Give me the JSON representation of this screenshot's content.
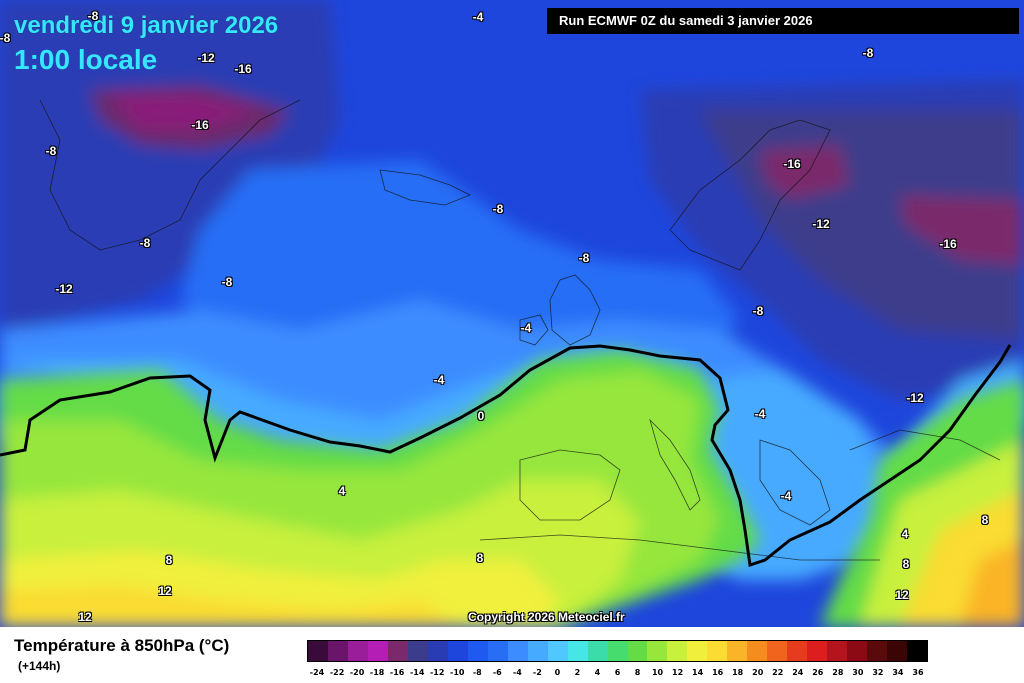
{
  "header": {
    "date": "vendredi 9 janvier 2026",
    "time": "1:00 locale",
    "run": "Run ECMWF 0Z du samedi 3 janvier 2026"
  },
  "copyright": "Copyright 2026 Meteociel.fr",
  "legend": {
    "title": "Température à 850hPa (°C)",
    "subtitle": "(+144h)",
    "ticks": [
      "-24",
      "-22",
      "-20",
      "-18",
      "-16",
      "-14",
      "-12",
      "-10",
      "-8",
      "-6",
      "-4",
      "-2",
      "0",
      "2",
      "4",
      "6",
      "8",
      "10",
      "12",
      "14",
      "16",
      "18",
      "20",
      "22",
      "24",
      "26",
      "28",
      "30",
      "32",
      "34",
      "36"
    ],
    "colors": [
      "#3a0a3a",
      "#6a146a",
      "#9a1e9a",
      "#b41eb4",
      "#7a2a6a",
      "#3c3c8c",
      "#2a3cb4",
      "#1e46dc",
      "#1e5af0",
      "#286ef5",
      "#3c8cff",
      "#46aaff",
      "#50c8ff",
      "#46e6e6",
      "#3cdcaa",
      "#46dc6e",
      "#64dc46",
      "#96e63c",
      "#c8f03c",
      "#f0f03c",
      "#fadc32",
      "#fab428",
      "#f58c1e",
      "#f0641e",
      "#e63c1e",
      "#dc1e1e",
      "#b4141e",
      "#8c0a14",
      "#5a0a0a",
      "#3c0505",
      "#000000"
    ]
  },
  "isotherm_labels": [
    {
      "text": "-8"
    },
    {
      "text": "-4"
    },
    {
      "text": "-8"
    },
    {
      "text": "-12"
    },
    {
      "text": "-16"
    },
    {
      "text": "-16"
    },
    {
      "text": "-8"
    },
    {
      "text": "-8"
    },
    {
      "text": "-8"
    },
    {
      "text": "-12"
    },
    {
      "text": "-8"
    },
    {
      "text": "-16"
    },
    {
      "text": "-12"
    },
    {
      "text": "-16"
    },
    {
      "text": "-8"
    },
    {
      "text": "-8"
    },
    {
      "text": "-4"
    },
    {
      "text": "-4"
    },
    {
      "text": "-4"
    },
    {
      "text": "-4"
    },
    {
      "text": "0"
    },
    {
      "text": "-12"
    },
    {
      "text": "4"
    },
    {
      "text": "8"
    },
    {
      "text": "8"
    },
    {
      "text": "12"
    },
    {
      "text": "12"
    },
    {
      "text": "4"
    },
    {
      "text": "8"
    },
    {
      "text": "12"
    },
    {
      "text": "8"
    },
    {
      "text": "-8"
    }
  ]
}
